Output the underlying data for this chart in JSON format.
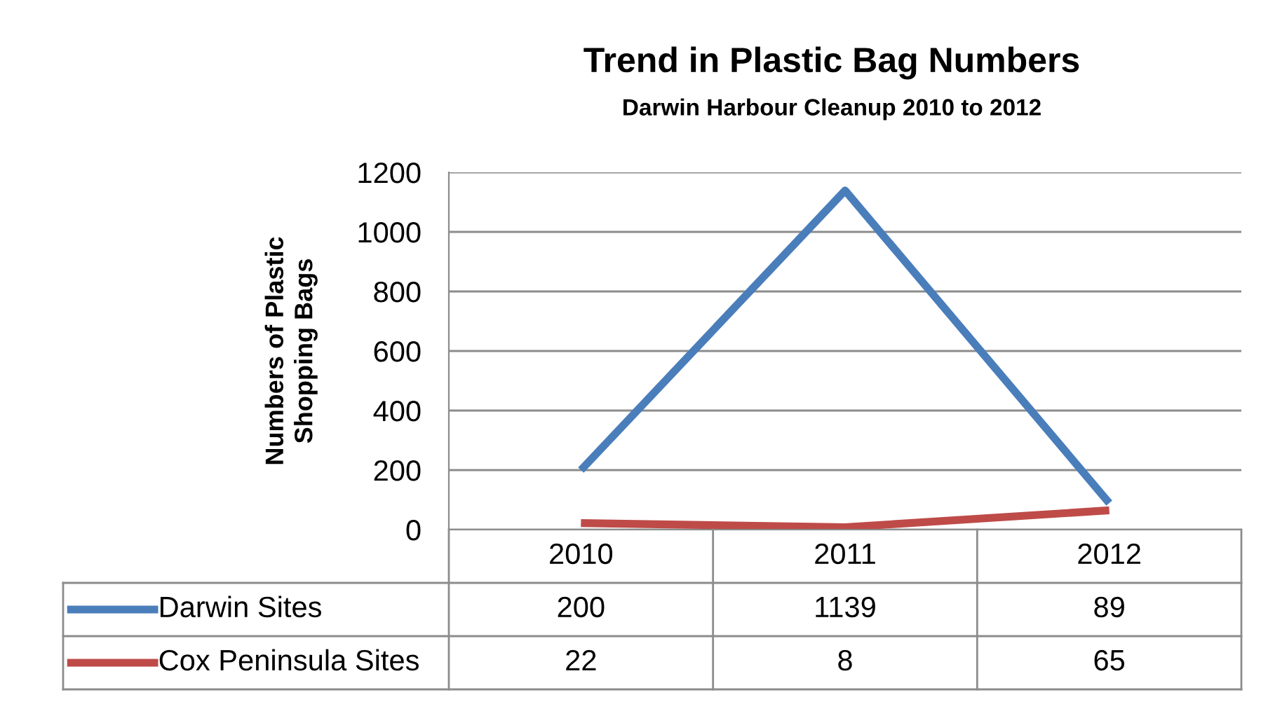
{
  "chart_data": {
    "type": "line",
    "title": "Trend in Plastic Bag Numbers",
    "subtitle": "Darwin Harbour Cleanup 2010 to 2012",
    "ylabel": "Numbers of Plastic\nShopping Bags",
    "categories": [
      "2010",
      "2011",
      "2012"
    ],
    "series": [
      {
        "name": "Darwin Sites",
        "color": "#4a7ebb",
        "values": [
          200,
          1139,
          89
        ]
      },
      {
        "name": "Cox Peninsula Sites",
        "color": "#be4b48",
        "values": [
          22,
          8,
          65
        ]
      }
    ],
    "ylim": [
      0,
      1200
    ],
    "yticks": [
      0,
      200,
      400,
      600,
      800,
      1000,
      1200
    ],
    "grid": "y",
    "data_labels": true,
    "legend": "bottom",
    "marker": "none",
    "line_style": "solid"
  }
}
